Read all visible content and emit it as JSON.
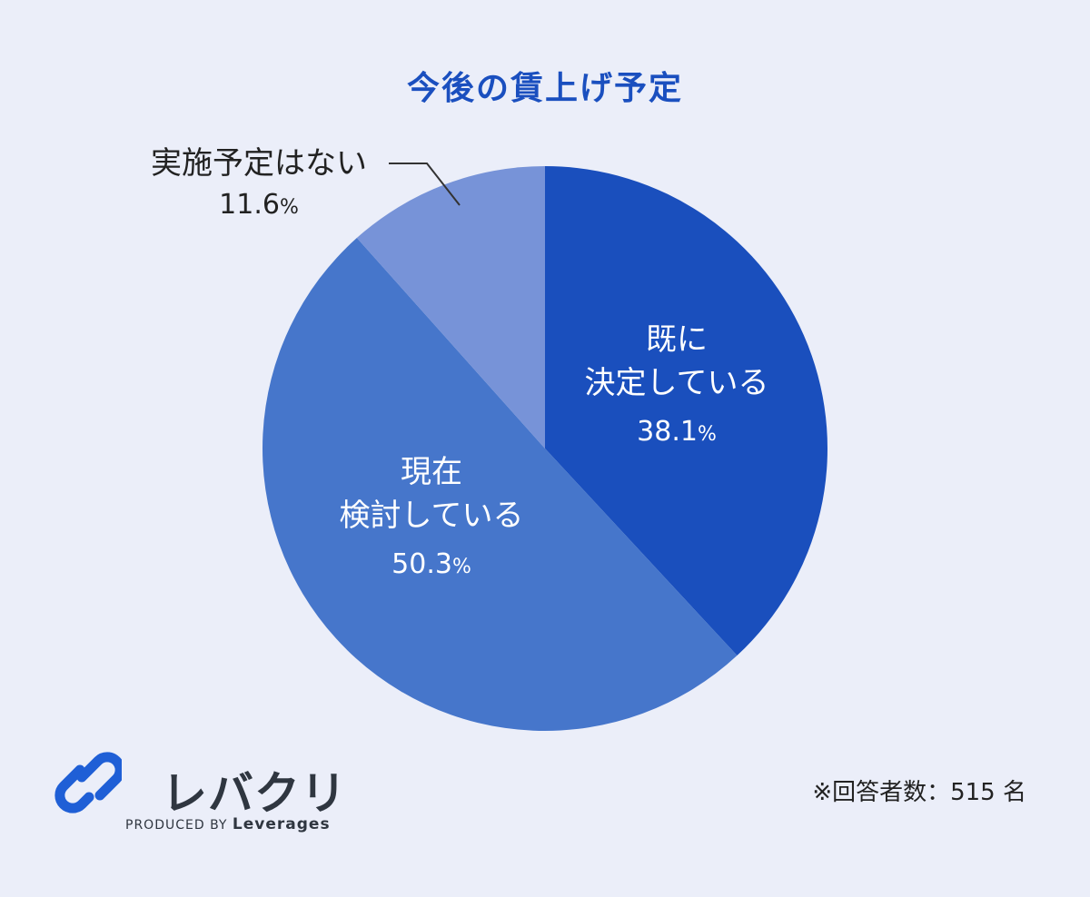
{
  "chart_data": {
    "type": "pie",
    "title": "今後の賃上げ予定",
    "categories": [
      "既に決定している",
      "現在検討している",
      "実施予定はない"
    ],
    "values": [
      38.1,
      50.3,
      11.6
    ],
    "labels": [
      {
        "lines": [
          "既に",
          "決定している"
        ],
        "value": "38.1",
        "unit": "%"
      },
      {
        "lines": [
          "現在",
          "検討している"
        ],
        "value": "50.3",
        "unit": "%"
      },
      {
        "lines": [
          "実施予定はない"
        ],
        "value": "11.6",
        "unit": "%"
      }
    ],
    "colors": [
      "#1a4fbd",
      "#4676cb",
      "#7793d8"
    ],
    "start": "12 o'clock, clockwise",
    "legend": "none"
  },
  "note": "※回答者数：515 名",
  "logo": {
    "name": "レバクリ",
    "produced_by": "PRODUCED BY",
    "brand": "Leverages",
    "name_color": "#2f3640",
    "mark_color": "#1f5fd6"
  }
}
